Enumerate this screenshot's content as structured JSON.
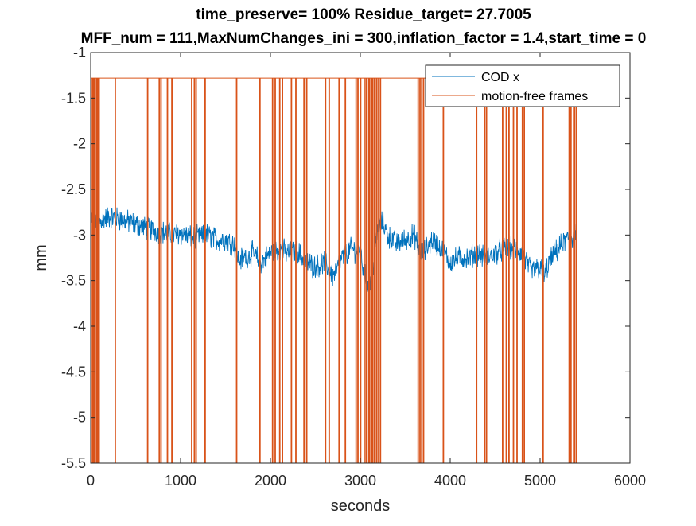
{
  "chart_data": {
    "type": "line",
    "title": "time_preserve= 100%  Residue_target= 27.7005",
    "subtitle": "MFF_num = 111,MaxNumChanges_ini = 300,inflation_factor = 1.4,start_time = 0",
    "xlabel": "seconds",
    "ylabel": "mm",
    "xlim": [
      0,
      6000
    ],
    "ylim": [
      -5.5,
      -1
    ],
    "xticks": [
      0,
      1000,
      2000,
      3000,
      4000,
      5000,
      6000
    ],
    "xtick_labels": [
      "0",
      "1000",
      "2000",
      "3000",
      "4000",
      "5000",
      "6000"
    ],
    "yticks": [
      -5.5,
      -5,
      -4.5,
      -4,
      -3.5,
      -3,
      -2.5,
      -2,
      -1.5,
      -1
    ],
    "ytick_labels": [
      "-5.5",
      "-5",
      "-4.5",
      "-4",
      "-3.5",
      "-3",
      "-2.5",
      "-2",
      "-1.5",
      "-1"
    ],
    "grid": false,
    "legend_position": "top-right",
    "series": [
      {
        "name": "COD x",
        "color": "#0072BD",
        "x": [
          0,
          50,
          100,
          200,
          300,
          400,
          500,
          600,
          700,
          800,
          900,
          1000,
          1100,
          1200,
          1300,
          1400,
          1500,
          1600,
          1650,
          1700,
          1800,
          1900,
          2000,
          2100,
          2200,
          2300,
          2400,
          2500,
          2600,
          2700,
          2800,
          2900,
          3000,
          3050,
          3100,
          3150,
          3200,
          3250,
          3300,
          3400,
          3500,
          3600,
          3650,
          3700,
          3800,
          3900,
          4000,
          4100,
          4200,
          4300,
          4400,
          4500,
          4600,
          4700,
          4800,
          4900,
          5000,
          5050,
          5100,
          5200,
          5300,
          5400
        ],
        "y": [
          -2.8,
          -2.9,
          -2.85,
          -2.8,
          -2.82,
          -2.85,
          -2.88,
          -2.92,
          -2.95,
          -2.97,
          -3.0,
          -2.98,
          -3.02,
          -3.03,
          -3.0,
          -3.05,
          -3.05,
          -3.1,
          -3.28,
          -3.25,
          -3.2,
          -3.3,
          -3.2,
          -3.15,
          -3.2,
          -3.18,
          -3.3,
          -3.35,
          -3.3,
          -3.45,
          -3.25,
          -3.15,
          -3.2,
          -3.45,
          -3.6,
          -3.3,
          -2.9,
          -2.85,
          -3.0,
          -3.1,
          -3.05,
          -3.0,
          -3.15,
          -3.2,
          -3.05,
          -3.15,
          -3.3,
          -3.25,
          -3.25,
          -3.2,
          -3.25,
          -3.2,
          -3.15,
          -3.15,
          -3.2,
          -3.4,
          -3.35,
          -3.45,
          -3.3,
          -3.15,
          -3.05,
          -3.0
        ]
      },
      {
        "name": "motion-free frames",
        "color": "#D95319",
        "high": -1.28,
        "low": -5.5,
        "drop_times": [
          15,
          25,
          40,
          60,
          75,
          90,
          270,
          630,
          760,
          780,
          850,
          900,
          1120,
          1150,
          1170,
          1270,
          1620,
          1880,
          2020,
          2050,
          2100,
          2130,
          2230,
          2280,
          2370,
          2400,
          2610,
          2650,
          2760,
          2830,
          2950,
          2970,
          3000,
          3040,
          3060,
          3090,
          3100,
          3120,
          3130,
          3150,
          3160,
          3180,
          3200,
          3220,
          3640,
          3660,
          3680,
          3700,
          3920,
          4290,
          4380,
          4400,
          4580,
          4620,
          4650,
          4700,
          4740,
          4800,
          4820,
          5030,
          5320,
          5340,
          5370,
          5380,
          5400
        ]
      }
    ]
  }
}
